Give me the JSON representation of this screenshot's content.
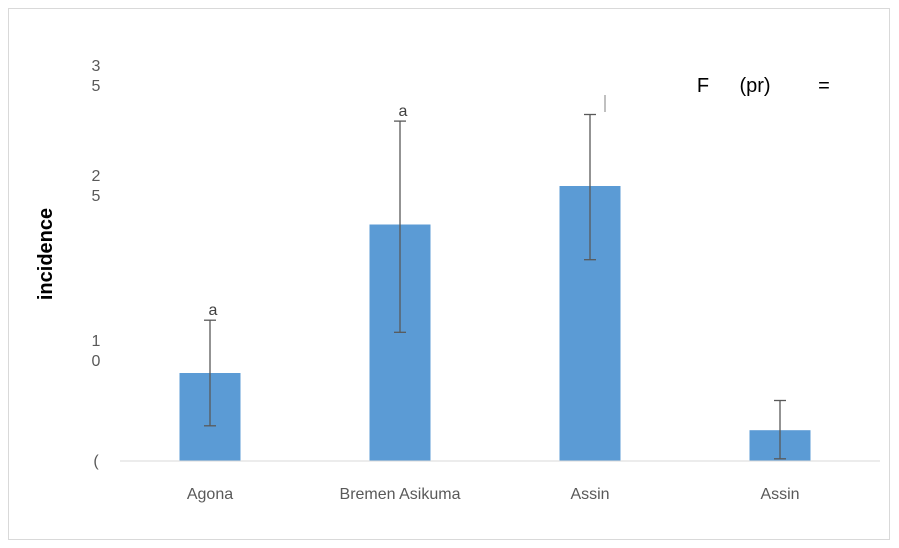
{
  "chart_data": {
    "type": "bar",
    "categories": [
      "Agona",
      "Bremen Asikuma",
      "Assin",
      "Assin"
    ],
    "values": [
      8,
      21.5,
      25,
      2.8
    ],
    "errors_high": [
      12.8,
      30.9,
      31.5,
      5.5
    ],
    "errors_low": [
      3.2,
      11.7,
      18.3,
      0.2
    ],
    "significance_letters": [
      "a",
      "a",
      "",
      ""
    ],
    "ylabel": "incidence",
    "ytick_labels": [
      {
        "value": 0,
        "lines": [
          "("
        ]
      },
      {
        "value": 10,
        "lines": [
          "1",
          "0"
        ]
      },
      {
        "value": 25,
        "lines": [
          "2",
          "5"
        ]
      },
      {
        "value": 35,
        "lines": [
          "3",
          "5"
        ]
      }
    ],
    "ylim": [
      0,
      38
    ],
    "annotation": [
      "F",
      "(pr)",
      "="
    ],
    "bar_color": "#5b9bd5",
    "errorbar_color": "#595959",
    "grid": false
  }
}
